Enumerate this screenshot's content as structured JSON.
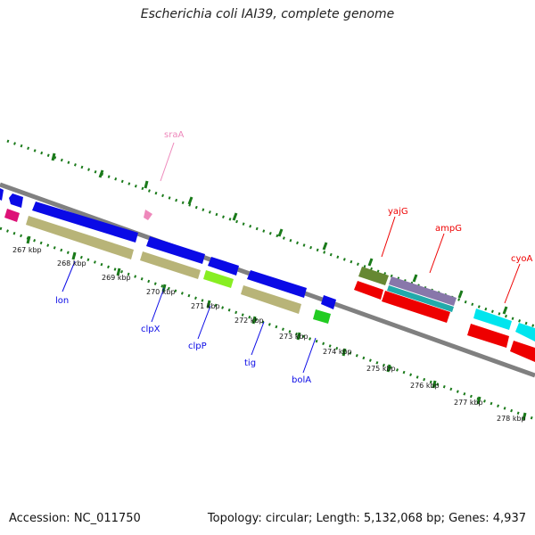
{
  "header": {
    "title": "Escherichia coli IAI39, complete genome"
  },
  "footer": {
    "accession": "Accession: NC_011750",
    "topology": "Topology: circular; Length: 5,132,068 bp; Genes: 4,937"
  },
  "ticks": [
    "267 kbp",
    "268 kbp",
    "269 kbp",
    "270 kbp",
    "271 kbp",
    "272 kbp",
    "273 kbp",
    "274 kbp",
    "275 kbp",
    "276 kbp",
    "277 kbp",
    "278 kbp"
  ],
  "gene_labels": {
    "sraA": "sraA",
    "yajG": "yajG",
    "ampG": "ampG",
    "cyoA": "cyoA",
    "lon": "lon",
    "clpX": "clpX",
    "clpP": "clpP",
    "tig": "tig",
    "bolA": "bolA"
  },
  "colors": {
    "backbone": "#808080",
    "dots": "#1a7a1a",
    "blue": "#0a0ae6",
    "olive": "#b8b478",
    "pink": "#ee88bb",
    "magenta": "#dd1177",
    "green": "#22cc22",
    "lime": "#88ee22",
    "darkolive": "#668833",
    "purple": "#8877aa",
    "teal": "#22aaaa",
    "red": "#ee0000",
    "cyan": "#00e5ee"
  }
}
